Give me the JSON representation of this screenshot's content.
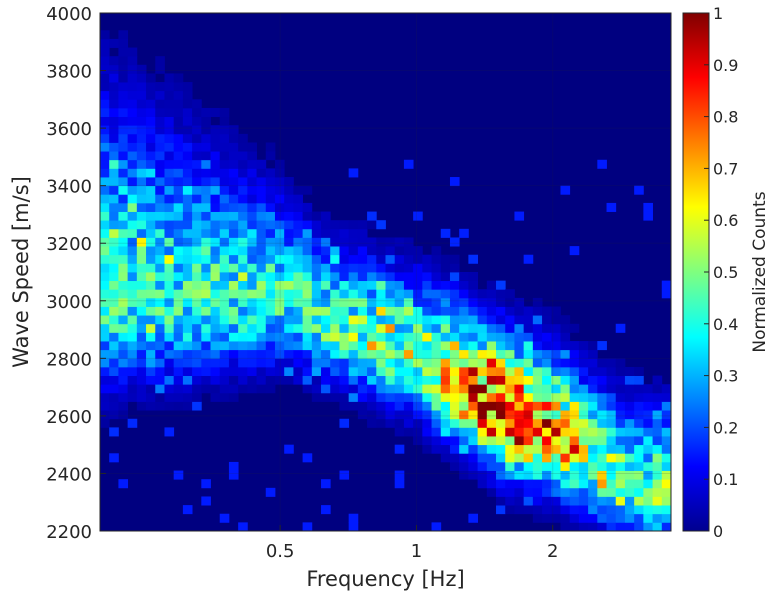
{
  "chart_data": {
    "type": "heatmap",
    "title": "",
    "xlabel": "Frequency [Hz]",
    "ylabel": "Wave Speed [m/s]",
    "colorbar_label": "Normalized Counts",
    "colormap": "jet",
    "x_scale": "log",
    "xlim": [
      0.2,
      3.65
    ],
    "ylim": [
      2200,
      4000
    ],
    "x_ticks": [
      0.5,
      1,
      2
    ],
    "x_tick_labels": [
      "0.5",
      "1",
      "2"
    ],
    "y_ticks": [
      2200,
      2400,
      2600,
      2800,
      3000,
      3200,
      3400,
      3600,
      3800,
      4000
    ],
    "y_tick_labels": [
      "2200",
      "2400",
      "2600",
      "2800",
      "3000",
      "3200",
      "3400",
      "3600",
      "3800",
      "4000"
    ],
    "clim": [
      0,
      1
    ],
    "colorbar_ticks": [
      0,
      0.1,
      0.2,
      0.3,
      0.4,
      0.5,
      0.6,
      0.7,
      0.8,
      0.9,
      1
    ],
    "colorbar_tick_labels": [
      "0",
      "0.1",
      "0.2",
      "0.3",
      "0.4",
      "0.5",
      "0.6",
      "0.7",
      "0.8",
      "0.9",
      "1"
    ],
    "grid": true,
    "peak": {
      "frequency_hz": 1.55,
      "wave_speed_ms": 2600,
      "value": 1.0
    },
    "ridge": [
      {
        "frequency_hz": 0.5,
        "wave_speed_ms": 3000,
        "value": 0.45
      },
      {
        "frequency_hz": 0.7,
        "wave_speed_ms": 2900,
        "value": 0.5
      },
      {
        "frequency_hz": 1.0,
        "wave_speed_ms": 2800,
        "value": 0.55
      },
      {
        "frequency_hz": 1.3,
        "wave_speed_ms": 2680,
        "value": 0.85
      },
      {
        "frequency_hz": 1.55,
        "wave_speed_ms": 2600,
        "value": 1.0
      },
      {
        "frequency_hz": 2.0,
        "wave_speed_ms": 2540,
        "value": 0.8
      },
      {
        "frequency_hz": 2.4,
        "wave_speed_ms": 2450,
        "value": 0.6
      },
      {
        "frequency_hz": 3.0,
        "wave_speed_ms": 2350,
        "value": 0.5
      }
    ]
  }
}
